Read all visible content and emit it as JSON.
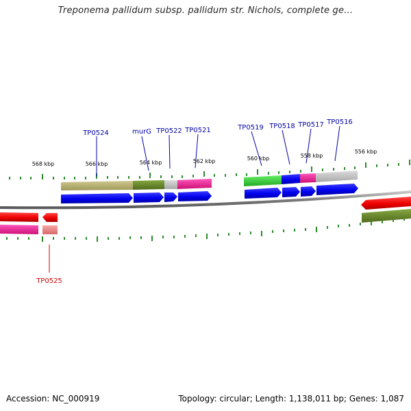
{
  "title": "Treponema pallidum subsp. pallidum str. Nichols, complete ge...",
  "footer": {
    "accession": "Accession: NC_000919",
    "summary": "Topology: circular; Length: 1,138,011 bp; Genes: 1,087"
  },
  "colors": {
    "backbone": "#8a8a8a",
    "gene_label_top": "#0000aa",
    "gene_label_bottom": "#cc0000",
    "tick": "#2a8a2a",
    "cds_forward": "#0000ee",
    "cds_reverse": "#ee0000",
    "olive": "#6b8a2a",
    "khaki": "#b7b070",
    "magenta": "#ee2299",
    "grey": "#c0c0c0",
    "green": "#33cc33",
    "salmon": "#ee8888"
  },
  "scale_labels": [
    "568 kbp",
    "566 kbp",
    "564 kbp",
    "562 kbp",
    "560 kbp",
    "558 kbp",
    "556 kbp"
  ],
  "gene_labels_top": [
    "TP0524",
    "murG",
    "TP0522",
    "TP0521",
    "TP0519",
    "TP0518",
    "TP0517",
    "TP0516"
  ],
  "gene_labels_bottom": [
    "TP0525"
  ]
}
